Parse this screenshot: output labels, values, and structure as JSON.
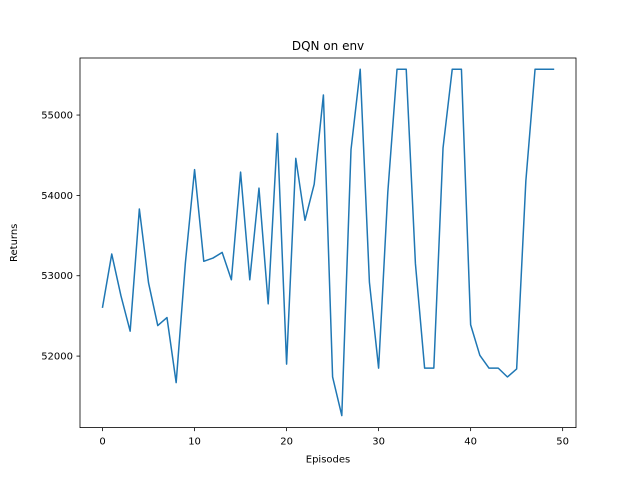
{
  "chart_data": {
    "type": "line",
    "title": "DQN on env",
    "xlabel": "Episodes",
    "ylabel": "Returns",
    "xlim": [
      -2.45,
      51.45
    ],
    "ylim": [
      51110,
      55710
    ],
    "xticks": [
      0,
      10,
      20,
      30,
      40,
      50
    ],
    "yticks": [
      52000,
      53000,
      54000,
      55000
    ],
    "grid": false,
    "series": [
      {
        "color": "#1f77b4",
        "x": [
          0,
          1,
          2,
          3,
          4,
          5,
          6,
          7,
          8,
          9,
          10,
          11,
          12,
          13,
          14,
          15,
          16,
          17,
          18,
          19,
          20,
          21,
          22,
          23,
          24,
          25,
          26,
          27,
          28,
          29,
          30,
          31,
          32,
          33,
          34,
          35,
          36,
          37,
          38,
          39,
          40,
          41,
          42,
          43,
          44,
          45,
          46,
          47,
          48,
          49
        ],
        "y": [
          52610,
          53270,
          52750,
          52310,
          53830,
          52910,
          52380,
          52480,
          51670,
          53160,
          54320,
          53180,
          53220,
          53290,
          52950,
          54290,
          52950,
          54090,
          52650,
          54770,
          51900,
          54460,
          53690,
          54140,
          55250,
          51740,
          51260,
          54570,
          55570,
          52920,
          51850,
          54040,
          55570,
          55570,
          53150,
          51850,
          51850,
          54590,
          55570,
          55570,
          52390,
          52010,
          51850,
          51850,
          51740,
          51840,
          54180,
          55570,
          55570,
          55570
        ]
      }
    ]
  }
}
